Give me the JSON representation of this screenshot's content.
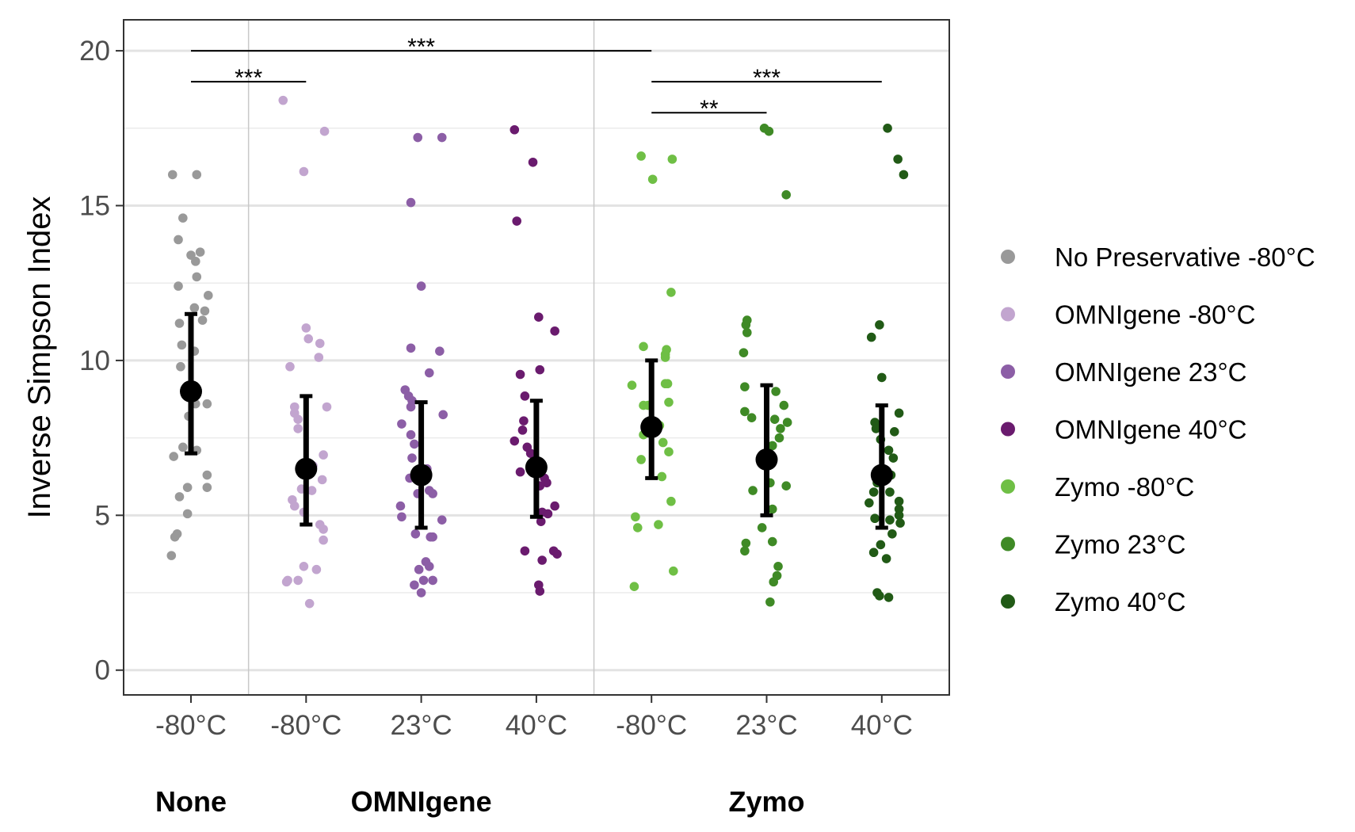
{
  "chart_data": {
    "type": "scatter",
    "ylabel": "Inverse Simpson Index",
    "xlabel": "",
    "ylim": [
      -0.8,
      21
    ],
    "yticks": [
      0,
      5,
      10,
      15,
      20
    ],
    "grid": true,
    "legend_position": "right",
    "categories": [
      "-80°C",
      "-80°C",
      "23°C",
      "40°C",
      "-80°C",
      "23°C",
      "40°C"
    ],
    "group_labels": [
      {
        "label": "None",
        "center_index": 0
      },
      {
        "label": "OMNIgene",
        "center_index": 2
      },
      {
        "label": "Zymo",
        "center_index": 5
      }
    ],
    "separators_after_index": [
      0,
      3
    ],
    "series": [
      {
        "name": "No Preservative -80°C",
        "color": "#999999",
        "mean": 9.0,
        "lower": 7.0,
        "upper": 11.5,
        "points": [
          [
            -0.16,
            16.0
          ],
          [
            0.05,
            16.0
          ],
          [
            -0.07,
            14.6
          ],
          [
            -0.11,
            13.9
          ],
          [
            0.0,
            13.4
          ],
          [
            0.08,
            13.5
          ],
          [
            0.04,
            13.2
          ],
          [
            -0.11,
            12.4
          ],
          [
            0.05,
            12.7
          ],
          [
            0.15,
            12.1
          ],
          [
            0.03,
            11.7
          ],
          [
            0.12,
            11.6
          ],
          [
            0.1,
            11.3
          ],
          [
            -0.1,
            11.2
          ],
          [
            -0.08,
            10.5
          ],
          [
            0.03,
            10.3
          ],
          [
            -0.09,
            9.8
          ],
          [
            0.04,
            8.6
          ],
          [
            0.14,
            8.6
          ],
          [
            -0.02,
            8.2
          ],
          [
            -0.07,
            7.2
          ],
          [
            0.05,
            7.1
          ],
          [
            -0.15,
            6.9
          ],
          [
            0.14,
            6.3
          ],
          [
            -0.03,
            5.9
          ],
          [
            0.14,
            5.9
          ],
          [
            -0.1,
            5.6
          ],
          [
            -0.03,
            5.05
          ],
          [
            -0.12,
            4.4
          ],
          [
            -0.14,
            4.3
          ],
          [
            -0.17,
            3.7
          ]
        ]
      },
      {
        "name": "OMNIgene -80°C",
        "color": "#c2a5cf",
        "mean": 6.5,
        "lower": 4.7,
        "upper": 8.85,
        "points": [
          [
            -0.2,
            18.4
          ],
          [
            0.16,
            17.4
          ],
          [
            -0.02,
            16.1
          ],
          [
            0.0,
            11.05
          ],
          [
            0.02,
            10.7
          ],
          [
            0.12,
            10.55
          ],
          [
            0.11,
            10.1
          ],
          [
            -0.14,
            9.8
          ],
          [
            0.18,
            8.5
          ],
          [
            -0.1,
            8.5
          ],
          [
            -0.07,
            8.1
          ],
          [
            -0.1,
            8.3
          ],
          [
            -0.07,
            7.8
          ],
          [
            0.15,
            6.95
          ],
          [
            0.06,
            6.6
          ],
          [
            0.14,
            6.15
          ],
          [
            -0.04,
            5.85
          ],
          [
            0.05,
            5.8
          ],
          [
            -0.12,
            5.5
          ],
          [
            -0.1,
            5.3
          ],
          [
            -0.02,
            5.1
          ],
          [
            0.12,
            4.7
          ],
          [
            0.15,
            4.55
          ],
          [
            0.15,
            4.2
          ],
          [
            -0.02,
            3.35
          ],
          [
            0.09,
            3.25
          ],
          [
            -0.16,
            2.9
          ],
          [
            -0.17,
            2.85
          ],
          [
            -0.07,
            2.9
          ],
          [
            0.03,
            2.15
          ]
        ]
      },
      {
        "name": "OMNIgene 23°C",
        "color": "#8c5ea6",
        "mean": 6.3,
        "lower": 4.6,
        "upper": 8.65,
        "points": [
          [
            -0.03,
            17.2
          ],
          [
            0.18,
            17.2
          ],
          [
            -0.09,
            15.1
          ],
          [
            0.0,
            12.4
          ],
          [
            -0.09,
            10.4
          ],
          [
            0.16,
            10.3
          ],
          [
            0.07,
            9.6
          ],
          [
            -0.14,
            9.05
          ],
          [
            -0.11,
            8.85
          ],
          [
            -0.08,
            8.7
          ],
          [
            -0.09,
            8.5
          ],
          [
            0.19,
            8.25
          ],
          [
            -0.17,
            7.95
          ],
          [
            -0.09,
            7.6
          ],
          [
            -0.06,
            7.3
          ],
          [
            -0.08,
            6.85
          ],
          [
            0.05,
            6.5
          ],
          [
            -0.1,
            6.2
          ],
          [
            0.07,
            5.8
          ],
          [
            0.1,
            5.7
          ],
          [
            -0.03,
            5.7
          ],
          [
            -0.18,
            5.3
          ],
          [
            -0.17,
            4.95
          ],
          [
            0.18,
            4.85
          ],
          [
            -0.05,
            4.4
          ],
          [
            0.08,
            4.3
          ],
          [
            0.1,
            4.3
          ],
          [
            0.04,
            3.5
          ],
          [
            0.07,
            3.35
          ],
          [
            -0.02,
            3.25
          ],
          [
            0.1,
            2.9
          ],
          [
            -0.06,
            2.75
          ],
          [
            0.02,
            2.9
          ],
          [
            0.0,
            2.5
          ]
        ]
      },
      {
        "name": "OMNIgene 40°C",
        "color": "#6a1b6e",
        "mean": 6.55,
        "lower": 4.95,
        "upper": 8.7,
        "points": [
          [
            -0.19,
            17.45
          ],
          [
            -0.03,
            16.4
          ],
          [
            -0.17,
            14.5
          ],
          [
            0.02,
            11.4
          ],
          [
            0.16,
            10.95
          ],
          [
            -0.14,
            9.55
          ],
          [
            0.03,
            9.7
          ],
          [
            -0.1,
            8.85
          ],
          [
            -0.11,
            8.05
          ],
          [
            -0.12,
            7.75
          ],
          [
            -0.19,
            7.4
          ],
          [
            -0.08,
            7.2
          ],
          [
            -0.05,
            7.0
          ],
          [
            -0.14,
            6.4
          ],
          [
            0.07,
            6.2
          ],
          [
            0.09,
            6.05
          ],
          [
            0.03,
            5.95
          ],
          [
            0.16,
            5.3
          ],
          [
            0.05,
            5.1
          ],
          [
            0.1,
            5.05
          ],
          [
            0.04,
            4.8
          ],
          [
            -0.1,
            3.85
          ],
          [
            0.15,
            3.85
          ],
          [
            0.18,
            3.75
          ],
          [
            0.05,
            3.55
          ],
          [
            0.02,
            2.75
          ],
          [
            0.03,
            2.55
          ]
        ]
      },
      {
        "name": "Zymo -80°C",
        "color": "#6fbf45",
        "mean": 7.85,
        "lower": 6.2,
        "upper": 10.0,
        "points": [
          [
            -0.09,
            16.6
          ],
          [
            0.18,
            16.5
          ],
          [
            0.01,
            15.85
          ],
          [
            0.17,
            12.2
          ],
          [
            -0.07,
            10.45
          ],
          [
            0.13,
            10.35
          ],
          [
            0.12,
            10.2
          ],
          [
            0.12,
            10.1
          ],
          [
            0.14,
            9.25
          ],
          [
            0.12,
            9.25
          ],
          [
            -0.17,
            9.2
          ],
          [
            0.15,
            8.65
          ],
          [
            -0.07,
            8.55
          ],
          [
            -0.03,
            8.55
          ],
          [
            0.07,
            7.9
          ],
          [
            -0.07,
            7.6
          ],
          [
            0.1,
            7.35
          ],
          [
            0.15,
            7.05
          ],
          [
            -0.09,
            6.8
          ],
          [
            0.09,
            6.25
          ],
          [
            0.17,
            5.45
          ],
          [
            -0.14,
            4.95
          ],
          [
            0.06,
            4.7
          ],
          [
            -0.12,
            4.6
          ],
          [
            0.19,
            3.2
          ],
          [
            -0.15,
            2.7
          ]
        ]
      },
      {
        "name": "Zymo 23°C",
        "color": "#3f8a26",
        "mean": 6.8,
        "lower": 5.0,
        "upper": 9.2,
        "points": [
          [
            -0.02,
            17.5
          ],
          [
            0.02,
            17.4
          ],
          [
            0.17,
            15.35
          ],
          [
            -0.17,
            11.3
          ],
          [
            -0.18,
            11.15
          ],
          [
            -0.17,
            10.9
          ],
          [
            -0.2,
            10.25
          ],
          [
            -0.19,
            9.15
          ],
          [
            0.08,
            9.0
          ],
          [
            0.15,
            8.55
          ],
          [
            -0.19,
            8.35
          ],
          [
            -0.13,
            8.15
          ],
          [
            0.07,
            8.1
          ],
          [
            0.18,
            8.0
          ],
          [
            0.12,
            7.8
          ],
          [
            0.11,
            7.5
          ],
          [
            0.05,
            7.25
          ],
          [
            0.17,
            5.95
          ],
          [
            0.03,
            6.05
          ],
          [
            -0.12,
            5.8
          ],
          [
            0.05,
            5.2
          ],
          [
            -0.04,
            4.6
          ],
          [
            0.05,
            4.15
          ],
          [
            -0.18,
            4.1
          ],
          [
            -0.19,
            3.85
          ],
          [
            0.1,
            3.35
          ],
          [
            0.09,
            3.05
          ],
          [
            0.06,
            2.85
          ],
          [
            0.03,
            2.2
          ]
        ]
      },
      {
        "name": "Zymo 40°C",
        "color": "#215a16",
        "mean": 6.3,
        "lower": 4.6,
        "upper": 8.55,
        "points": [
          [
            0.05,
            17.5
          ],
          [
            0.14,
            16.5
          ],
          [
            0.19,
            16.0
          ],
          [
            -0.02,
            11.15
          ],
          [
            -0.09,
            10.75
          ],
          [
            0.0,
            9.45
          ],
          [
            -0.06,
            8.0
          ],
          [
            -0.04,
            7.9
          ],
          [
            -0.05,
            7.8
          ],
          [
            0.15,
            8.3
          ],
          [
            -0.01,
            7.45
          ],
          [
            0.11,
            7.7
          ],
          [
            0.06,
            7.1
          ],
          [
            0.1,
            6.85
          ],
          [
            -0.05,
            6.3
          ],
          [
            -0.04,
            6.05
          ],
          [
            0.08,
            6.3
          ],
          [
            -0.07,
            5.75
          ],
          [
            0.07,
            5.75
          ],
          [
            -0.11,
            5.4
          ],
          [
            0.15,
            5.45
          ],
          [
            0.15,
            5.2
          ],
          [
            0.15,
            5.0
          ],
          [
            -0.06,
            4.9
          ],
          [
            0.07,
            4.85
          ],
          [
            0.16,
            4.75
          ],
          [
            0.09,
            4.4
          ],
          [
            -0.01,
            4.05
          ],
          [
            -0.07,
            3.8
          ],
          [
            0.04,
            3.6
          ],
          [
            -0.04,
            2.5
          ],
          [
            -0.02,
            2.4
          ],
          [
            0.06,
            2.35
          ]
        ]
      }
    ],
    "significance": [
      {
        "from_index": 0,
        "to_index": 4,
        "y": 20.0,
        "label": "***"
      },
      {
        "from_index": 0,
        "to_index": 1,
        "y": 19.0,
        "label": "***"
      },
      {
        "from_index": 4,
        "to_index": 6,
        "y": 19.0,
        "label": "***"
      },
      {
        "from_index": 4,
        "to_index": 5,
        "y": 18.0,
        "label": "**"
      }
    ],
    "summary_color": "#000000"
  }
}
